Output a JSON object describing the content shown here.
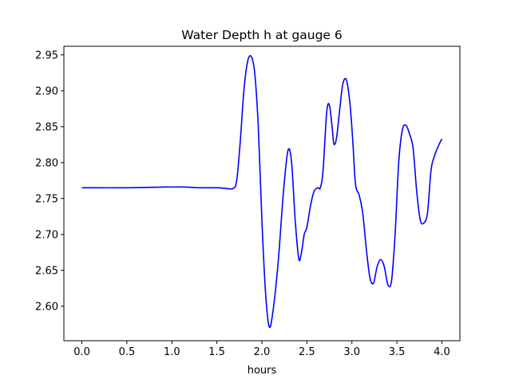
{
  "chart_data": {
    "type": "line",
    "title": "Water Depth h at gauge 6",
    "xlabel": "hours",
    "ylabel": "",
    "xlim": [
      -0.2,
      4.2
    ],
    "ylim": [
      2.552,
      2.962
    ],
    "xticks": [
      0.0,
      0.5,
      1.0,
      1.5,
      2.0,
      2.5,
      3.0,
      3.5,
      4.0
    ],
    "xtick_labels": [
      "0.0",
      "0.5",
      "1.0",
      "1.5",
      "2.0",
      "2.5",
      "3.0",
      "3.5",
      "4.0"
    ],
    "yticks": [
      2.6,
      2.65,
      2.7,
      2.75,
      2.8,
      2.85,
      2.9,
      2.95
    ],
    "ytick_labels": [
      "2.60",
      "2.65",
      "2.70",
      "2.75",
      "2.80",
      "2.85",
      "2.90",
      "2.95"
    ],
    "grid": false,
    "color": "#0000ff",
    "series": [
      {
        "x": [
          0.0,
          0.5,
          0.9,
          1.0,
          1.15,
          1.3,
          1.5,
          1.6,
          1.68,
          1.72,
          1.76,
          1.8,
          1.84,
          1.88,
          1.92,
          1.96,
          2.0,
          2.04,
          2.08,
          2.12,
          2.18,
          2.24,
          2.29,
          2.33,
          2.37,
          2.41,
          2.44,
          2.47,
          2.5,
          2.54,
          2.58,
          2.62,
          2.65,
          2.68,
          2.72,
          2.75,
          2.78,
          2.8,
          2.83,
          2.87,
          2.9,
          2.94,
          2.98,
          3.01,
          3.04,
          3.08,
          3.12,
          3.16,
          3.2,
          3.24,
          3.28,
          3.32,
          3.36,
          3.4,
          3.44,
          3.48,
          3.52,
          3.56,
          3.6,
          3.64,
          3.68,
          3.72,
          3.76,
          3.8,
          3.84,
          3.88,
          3.92,
          3.96,
          4.0
        ],
        "y": [
          2.765,
          2.765,
          2.766,
          2.766,
          2.766,
          2.765,
          2.765,
          2.764,
          2.764,
          2.775,
          2.83,
          2.9,
          2.94,
          2.948,
          2.925,
          2.85,
          2.72,
          2.62,
          2.572,
          2.59,
          2.66,
          2.76,
          2.817,
          2.8,
          2.72,
          2.666,
          2.675,
          2.7,
          2.71,
          2.74,
          2.76,
          2.765,
          2.765,
          2.79,
          2.87,
          2.88,
          2.85,
          2.826,
          2.835,
          2.88,
          2.91,
          2.915,
          2.88,
          2.83,
          2.77,
          2.755,
          2.73,
          2.68,
          2.64,
          2.632,
          2.655,
          2.665,
          2.655,
          2.63,
          2.635,
          2.7,
          2.8,
          2.845,
          2.852,
          2.84,
          2.82,
          2.76,
          2.72,
          2.716,
          2.73,
          2.79,
          2.81,
          2.823,
          2.833
        ]
      }
    ]
  }
}
